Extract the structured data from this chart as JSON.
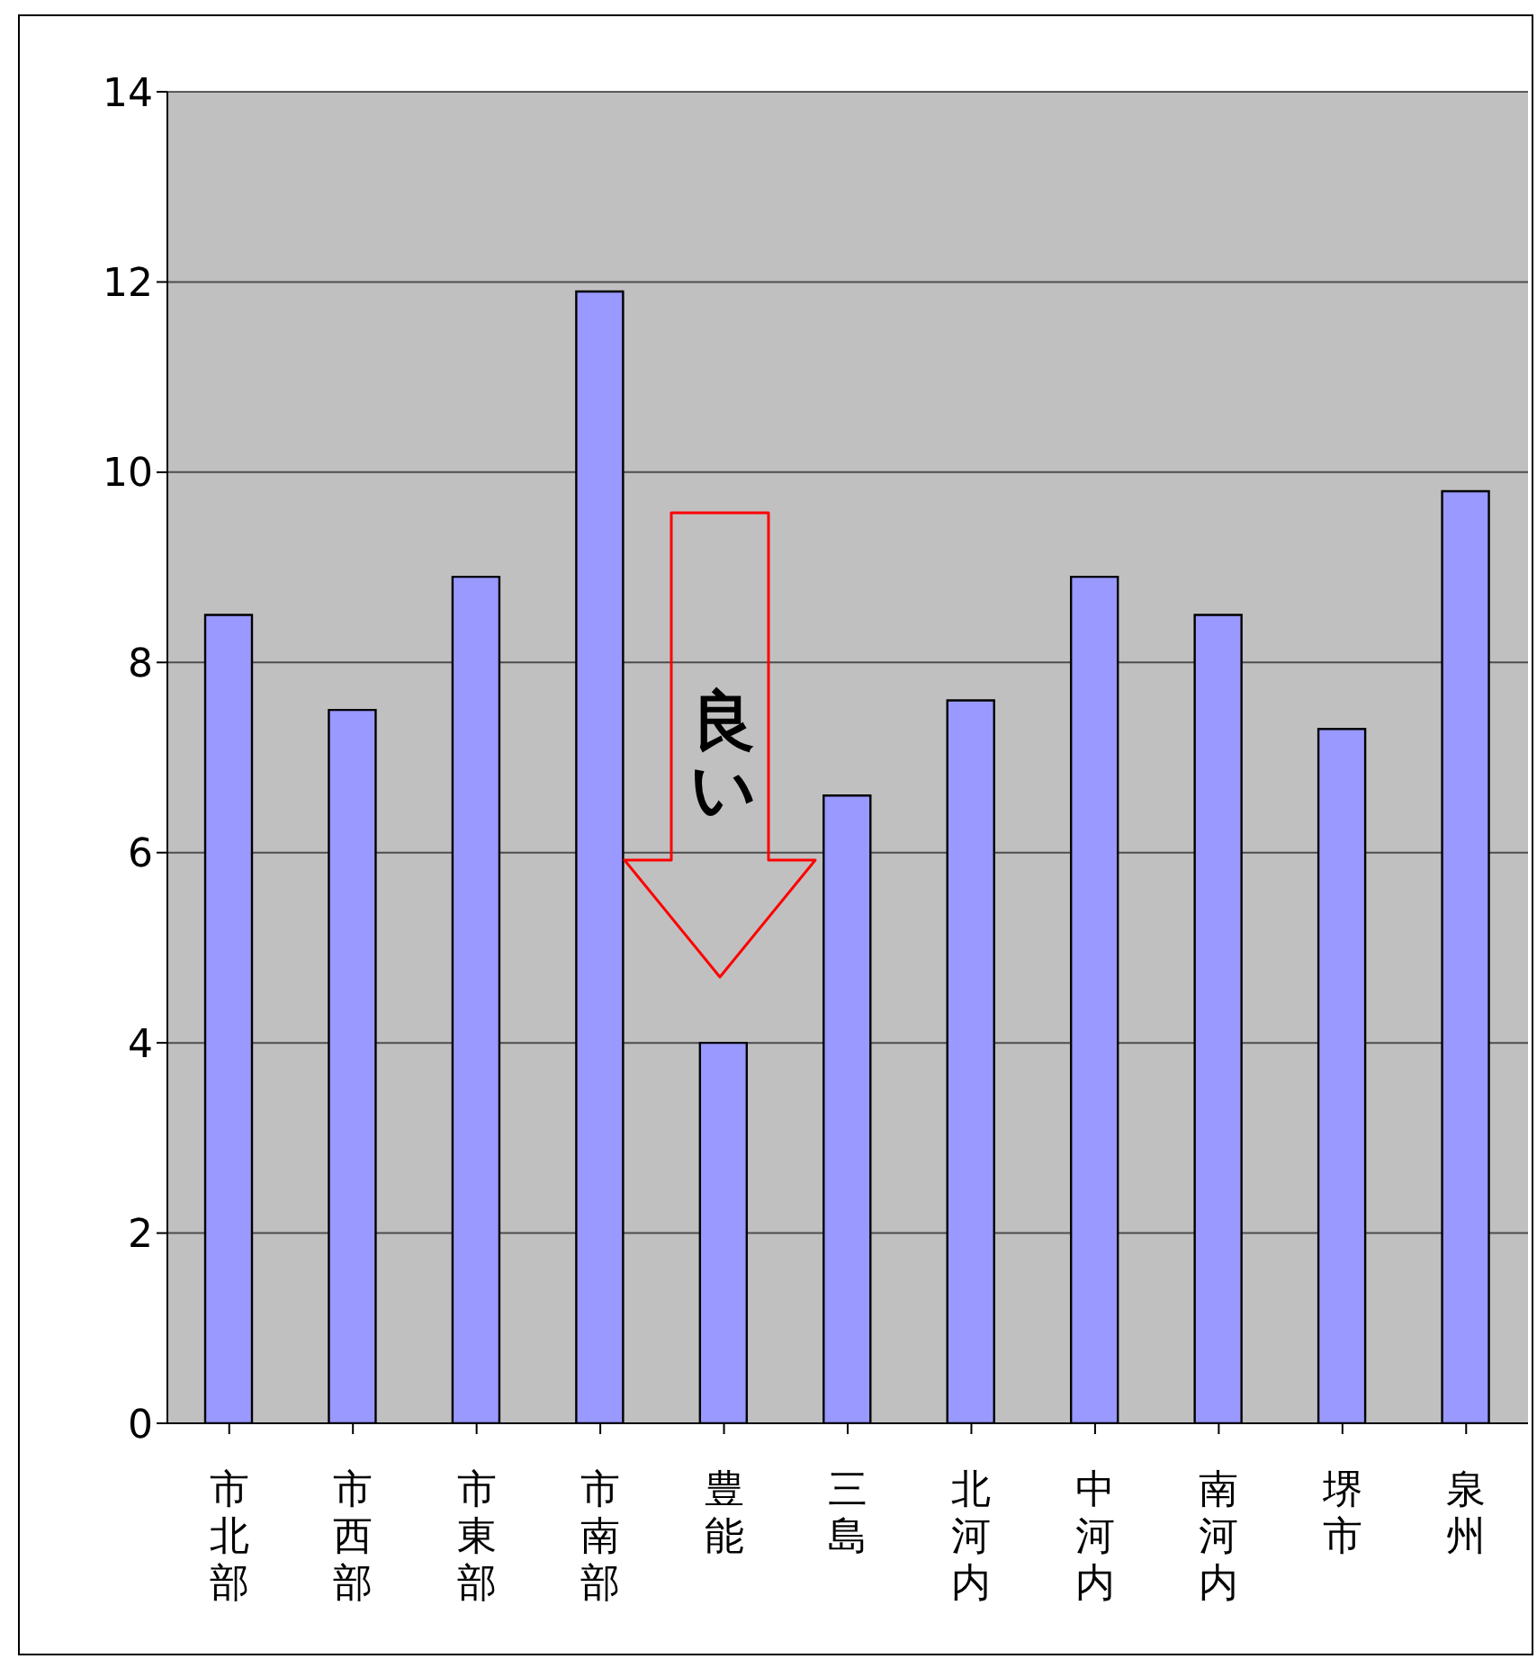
{
  "chart_data": {
    "type": "bar",
    "categories": [
      "市北部",
      "市西部",
      "市東部",
      "市南部",
      "豊能",
      "三島",
      "北河内",
      "中河内",
      "南河内",
      "堺市",
      "泉州"
    ],
    "values": [
      8.5,
      7.5,
      8.9,
      11.9,
      4.0,
      6.6,
      7.6,
      8.9,
      8.5,
      7.3,
      9.8
    ],
    "color": "#9999ff",
    "ylim": [
      0,
      14
    ],
    "yticks": [
      0,
      2,
      4,
      6,
      8,
      10,
      12,
      14
    ],
    "grid": "y",
    "annotations": [
      "良い"
    ]
  }
}
